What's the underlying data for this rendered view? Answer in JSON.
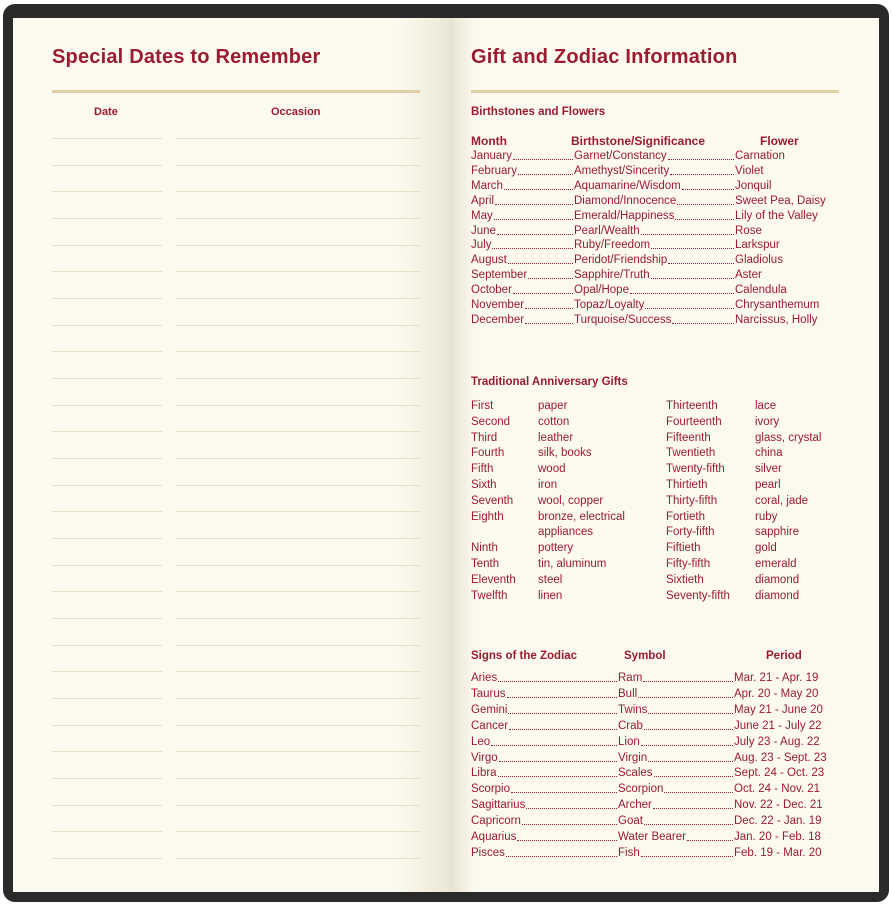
{
  "left": {
    "title": "Special Dates to Remember",
    "col_date": "Date",
    "col_occasion": "Occasion",
    "line_count": 28
  },
  "right": {
    "title": "Gift and Zodiac Information",
    "birth": {
      "heading": "Birthstones and Flowers",
      "headers": [
        "Month",
        "Birthstone/Significance",
        "Flower"
      ],
      "rows": [
        [
          "January",
          "Garnet/Constancy",
          "Carnation"
        ],
        [
          "February",
          "Amethyst/Sincerity",
          "Violet"
        ],
        [
          "March",
          "Aquamarine/Wisdom",
          "Jonquil"
        ],
        [
          "April",
          "Diamond/Innocence",
          "Sweet Pea, Daisy"
        ],
        [
          "May",
          "Emerald/Happiness",
          "Lily of the Valley"
        ],
        [
          "June",
          "Pearl/Wealth",
          "Rose"
        ],
        [
          "July",
          "Ruby/Freedom",
          "Larkspur"
        ],
        [
          "August",
          "Peridot/Friendship",
          "Gladiolus"
        ],
        [
          "September",
          "Sapphire/Truth",
          "Aster"
        ],
        [
          "October",
          "Opal/Hope",
          "Calendula"
        ],
        [
          "November",
          "Topaz/Loyalty",
          "Chrysanthemum"
        ],
        [
          "December",
          "Turquoise/Success",
          "Narcissus, Holly"
        ]
      ]
    },
    "anniv": {
      "heading": "Traditional Anniversary Gifts",
      "left": [
        [
          "First",
          "paper"
        ],
        [
          "Second",
          "cotton"
        ],
        [
          "Third",
          "leather"
        ],
        [
          "Fourth",
          "silk, books"
        ],
        [
          "Fifth",
          "wood"
        ],
        [
          "Sixth",
          "iron"
        ],
        [
          "Seventh",
          "wool, copper"
        ],
        [
          "Eighth",
          "bronze, electrical"
        ],
        [
          "",
          "appliances"
        ],
        [
          "Ninth",
          "pottery"
        ],
        [
          "Tenth",
          "tin, aluminum"
        ],
        [
          "Eleventh",
          "steel"
        ],
        [
          "Twelfth",
          "linen"
        ]
      ],
      "right": [
        [
          "Thirteenth",
          "lace"
        ],
        [
          "Fourteenth",
          "ivory"
        ],
        [
          "Fifteenth",
          "glass, crystal"
        ],
        [
          "Twentieth",
          "china"
        ],
        [
          "Twenty-fifth",
          "silver"
        ],
        [
          "Thirtieth",
          "pearl"
        ],
        [
          "Thirty-fifth",
          "coral, jade"
        ],
        [
          "Fortieth",
          "ruby"
        ],
        [
          "Forty-fifth",
          "sapphire"
        ],
        [
          "Fiftieth",
          "gold"
        ],
        [
          "Fifty-fifth",
          "emerald"
        ],
        [
          "Sixtieth",
          "diamond"
        ],
        [
          "Seventy-fifth",
          "diamond"
        ]
      ]
    },
    "zodiac": {
      "heading": "Signs of the Zodiac",
      "headers": [
        "Symbol",
        "Period"
      ],
      "rows": [
        [
          "Aries",
          "Ram",
          "Mar. 21 - Apr. 19"
        ],
        [
          "Taurus",
          "Bull",
          "Apr. 20 - May 20"
        ],
        [
          "Gemini",
          "Twins",
          "May 21 - June 20"
        ],
        [
          "Cancer",
          "Crab",
          "June 21 - July 22"
        ],
        [
          "Leo",
          "Lion",
          "July 23 - Aug. 22"
        ],
        [
          "Virgo",
          "Virgin",
          "Aug. 23 - Sept. 23"
        ],
        [
          "Libra",
          "Scales",
          "Sept. 24 - Oct. 23"
        ],
        [
          "Scorpio",
          "Scorpion",
          "Oct. 24 - Nov. 21"
        ],
        [
          "Sagittarius",
          "Archer",
          "Nov. 22 - Dec. 21"
        ],
        [
          "Capricorn",
          "Goat",
          "Dec. 22 - Jan. 19"
        ],
        [
          "Aquarius",
          "Water Bearer",
          "Jan. 20 - Feb. 18"
        ],
        [
          "Pisces",
          "Fish",
          "Feb. 19 - Mar. 20"
        ]
      ]
    }
  },
  "colors": {
    "text": "#9b1b30",
    "paper": "#fcfaee",
    "rule": "#e2cfa6",
    "cover": "#2a2a2a"
  }
}
